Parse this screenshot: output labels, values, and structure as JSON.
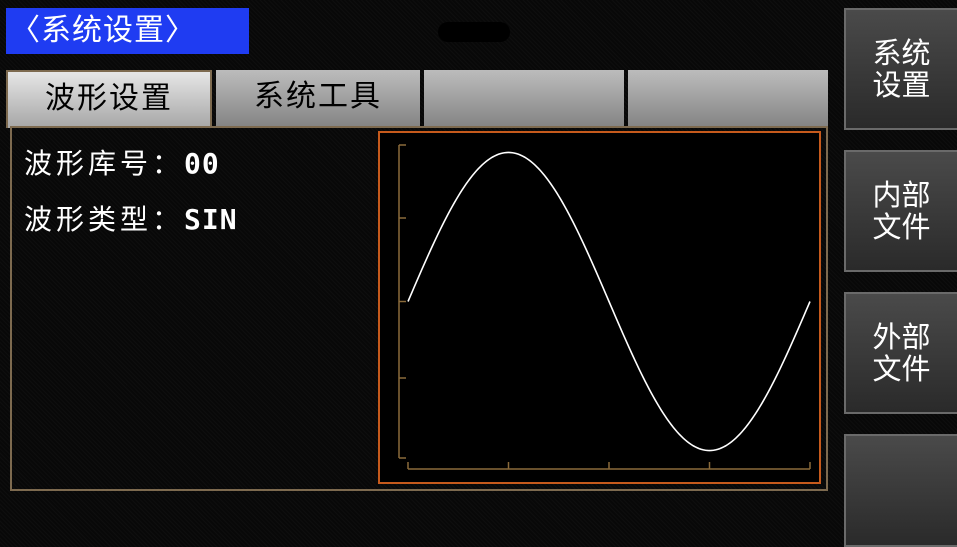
{
  "header": {
    "title": "〈系统设置〉"
  },
  "tabs": [
    {
      "label": "波形设置"
    },
    {
      "label": "系统工具"
    },
    {
      "label": ""
    },
    {
      "label": ""
    }
  ],
  "waveform": {
    "library_label": "波形库号",
    "library_value": "00",
    "type_label": "波形类型",
    "type_value": "SIN",
    "separator": "："
  },
  "chart_data": {
    "type": "line",
    "title": "",
    "xlabel": "",
    "ylabel": "",
    "x": [
      0,
      0.25,
      0.5,
      0.75,
      1
    ],
    "y": [
      0,
      1,
      0,
      -1,
      0
    ],
    "ylim": [
      -1.05,
      1.05
    ],
    "xlim": [
      0,
      1
    ],
    "grid": false,
    "series": [
      {
        "function": "sin",
        "cycles": 1,
        "color": "#ffffff"
      }
    ],
    "frame_color": "#c65a1c"
  },
  "softkeys": [
    {
      "line1": "系统",
      "line2": "设置"
    },
    {
      "line1": "内部",
      "line2": "文件"
    },
    {
      "line1": "外部",
      "line2": "文件"
    },
    {
      "line1": "",
      "line2": ""
    }
  ]
}
